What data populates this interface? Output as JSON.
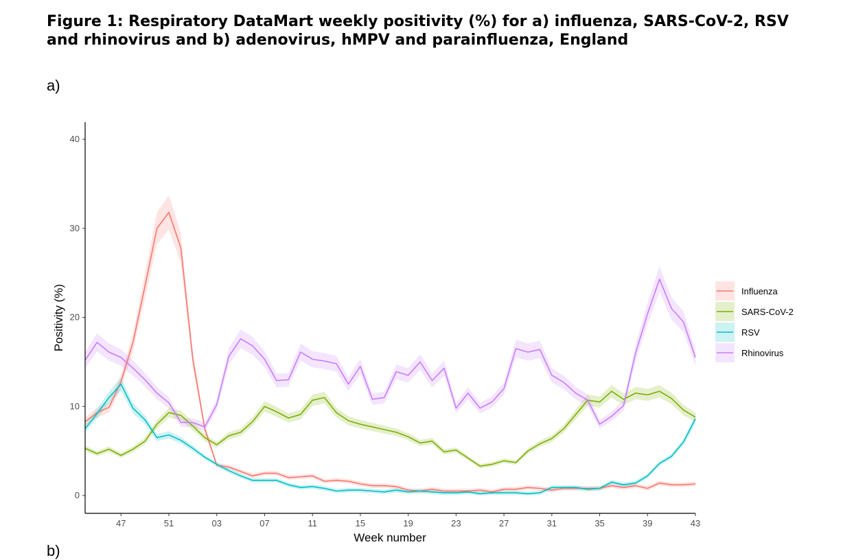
{
  "figure": {
    "title": "Figure 1: Respiratory DataMart weekly positivity (%) for a) influenza, SARS-CoV-2, RSV and rhinovirus and b) adenovirus, hMPV and parainfluenza, England",
    "panel_a_label": "a)",
    "panel_b_label": "b)"
  },
  "chart_data": {
    "type": "line",
    "xlabel": "Week number",
    "ylabel": "Positivity (%)",
    "ylim": [
      0,
      40
    ],
    "yticks": [
      0,
      10,
      20,
      30,
      40
    ],
    "x_tick_labels": [
      "47",
      "51",
      "03",
      "07",
      "11",
      "15",
      "19",
      "23",
      "27",
      "31",
      "35",
      "39",
      "43"
    ],
    "x_tick_index": [
      3,
      7,
      11,
      15,
      19,
      23,
      27,
      31,
      35,
      39,
      43,
      47,
      51
    ],
    "x_weeks": [
      "44",
      "45",
      "46",
      "47",
      "48",
      "49",
      "50",
      "51",
      "52",
      "01",
      "02",
      "03",
      "04",
      "05",
      "06",
      "07",
      "08",
      "09",
      "10",
      "11",
      "12",
      "13",
      "14",
      "15",
      "16",
      "17",
      "18",
      "19",
      "20",
      "21",
      "22",
      "23",
      "24",
      "25",
      "26",
      "27",
      "28",
      "29",
      "30",
      "31",
      "32",
      "33",
      "34",
      "35",
      "36",
      "37",
      "38",
      "39",
      "40",
      "41",
      "42",
      "43"
    ],
    "legend_position": "right",
    "grid": false,
    "confidence_bands": true,
    "series": [
      {
        "name": "Influenza",
        "color": "#F8766D",
        "values": [
          8.3,
          9.3,
          9.9,
          12.8,
          17.2,
          23.5,
          30.0,
          31.8,
          27.8,
          15.3,
          7.5,
          3.4,
          3.2,
          2.7,
          2.2,
          2.5,
          2.5,
          2.0,
          2.1,
          2.2,
          1.6,
          1.7,
          1.6,
          1.3,
          1.1,
          1.1,
          1.0,
          0.6,
          0.5,
          0.7,
          0.5,
          0.5,
          0.5,
          0.6,
          0.4,
          0.7,
          0.7,
          0.9,
          0.8,
          0.6,
          0.8,
          0.8,
          0.8,
          0.8,
          1.1,
          0.9,
          1.1,
          0.8,
          1.4,
          1.2,
          1.2,
          1.3
        ]
      },
      {
        "name": "SARS-CoV-2",
        "color": "#7CAE00",
        "values": [
          5.3,
          4.7,
          5.2,
          4.5,
          5.2,
          6.1,
          8.0,
          9.3,
          9.0,
          7.8,
          6.5,
          5.7,
          6.7,
          7.1,
          8.3,
          10.0,
          9.4,
          8.7,
          9.1,
          10.7,
          11.0,
          9.3,
          8.4,
          8.0,
          7.7,
          7.4,
          7.1,
          6.6,
          5.9,
          6.1,
          4.9,
          5.1,
          4.2,
          3.3,
          3.5,
          3.9,
          3.7,
          5.0,
          5.8,
          6.4,
          7.5,
          9.1,
          10.7,
          10.5,
          11.7,
          10.8,
          11.5,
          11.3,
          11.7,
          10.9,
          9.6,
          8.8
        ]
      },
      {
        "name": "RSV",
        "color": "#00BFC4",
        "values": [
          7.5,
          9.2,
          11.0,
          12.5,
          9.8,
          8.5,
          6.5,
          6.8,
          6.2,
          5.3,
          4.3,
          3.5,
          2.8,
          2.2,
          1.7,
          1.7,
          1.7,
          1.2,
          0.9,
          1.0,
          0.8,
          0.5,
          0.6,
          0.6,
          0.5,
          0.4,
          0.6,
          0.4,
          0.5,
          0.4,
          0.3,
          0.3,
          0.4,
          0.2,
          0.3,
          0.3,
          0.3,
          0.2,
          0.3,
          0.9,
          0.9,
          0.9,
          0.7,
          0.8,
          1.5,
          1.2,
          1.4,
          2.2,
          3.6,
          4.4,
          6.0,
          8.6
        ]
      },
      {
        "name": "Rhinovirus",
        "color": "#C77CFF",
        "values": [
          15.2,
          17.2,
          16.1,
          15.5,
          14.3,
          13.0,
          11.5,
          10.4,
          8.2,
          8.2,
          7.7,
          10.2,
          15.6,
          17.6,
          16.8,
          15.3,
          12.9,
          13.0,
          16.1,
          15.3,
          15.1,
          14.8,
          12.5,
          14.5,
          10.8,
          11.0,
          13.9,
          13.5,
          15.0,
          12.9,
          14.3,
          9.8,
          11.5,
          9.8,
          10.5,
          12.0,
          16.5,
          16.1,
          16.4,
          13.5,
          12.7,
          11.5,
          10.7,
          8.0,
          8.9,
          10.1,
          16.0,
          20.4,
          24.3,
          21.0,
          19.5,
          15.5
        ]
      }
    ]
  }
}
